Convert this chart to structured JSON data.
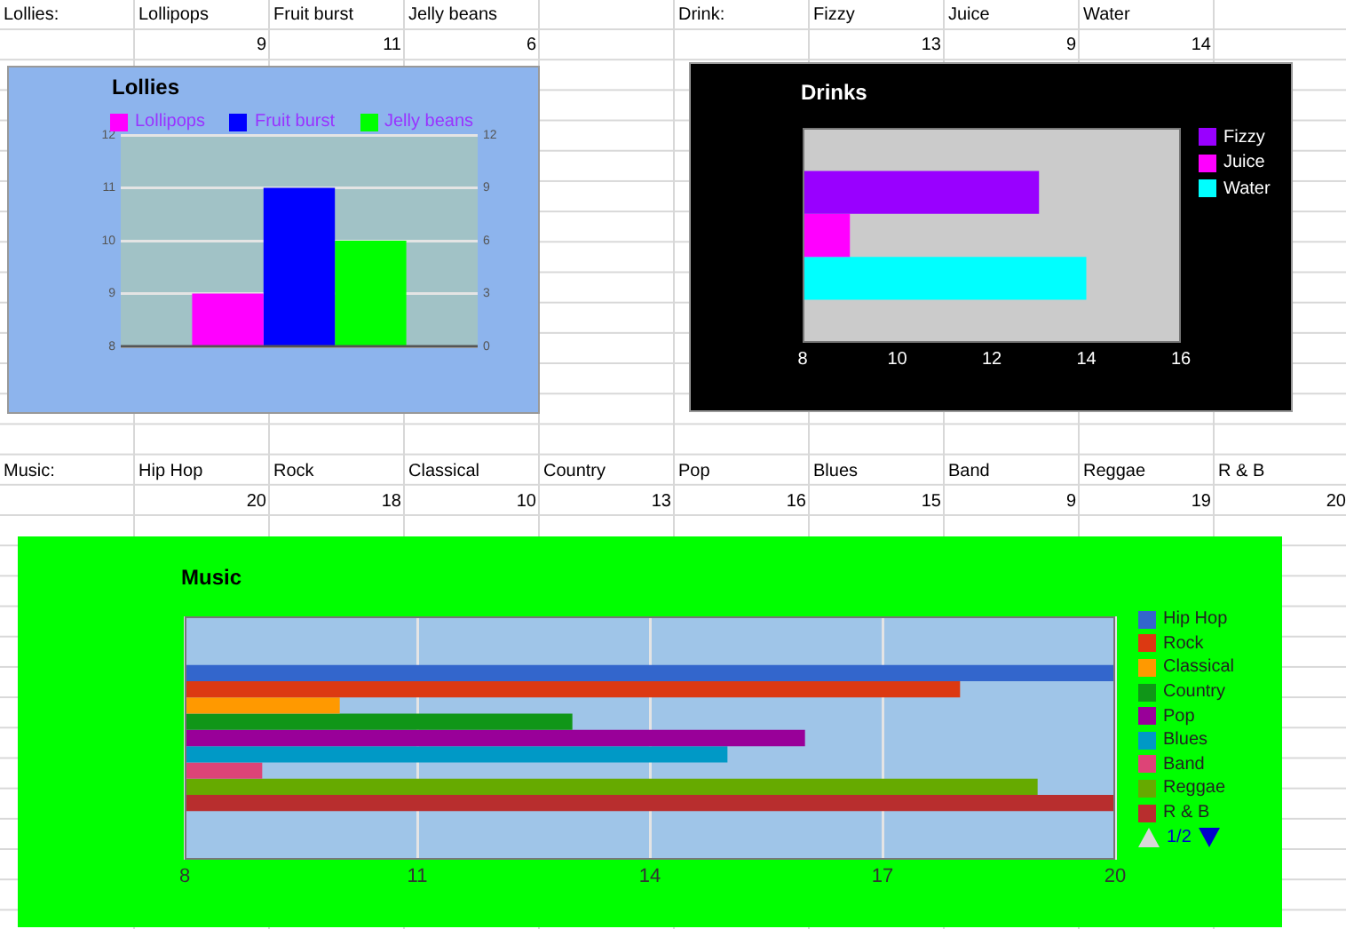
{
  "chart_data": [
    {
      "type": "bar",
      "title": "Lollies",
      "annotations": [
        "Lollies:",
        "9",
        "11",
        "6"
      ],
      "categories": [
        null
      ],
      "legend": "top",
      "grid": "y",
      "series": [
        {
          "name": "Lollipops",
          "color": "#ff00ff",
          "values": [
            9
          ]
        },
        {
          "name": "Fruit burst",
          "color": "#0000ff",
          "values": [
            11
          ]
        },
        {
          "name": "Jelly beans",
          "color": "#00ff00",
          "values": [
            6
          ],
          "axis": "y2"
        }
      ],
      "ylim": [
        8,
        12
      ],
      "yticks": [
        8,
        9,
        10,
        11,
        12
      ],
      "y2lim": [
        0,
        12
      ],
      "y2ticks": [
        0,
        3,
        6,
        9,
        12
      ]
    },
    {
      "type": "bar",
      "orientation": "horizontal",
      "title": "Drinks",
      "annotations": [
        "Drink:",
        "13",
        "9",
        "14"
      ],
      "categories": [
        null
      ],
      "legend": "right",
      "series": [
        {
          "name": "Fizzy",
          "color": "#9900ff",
          "values": [
            13
          ]
        },
        {
          "name": "Juice",
          "color": "#ff00ff",
          "values": [
            9
          ]
        },
        {
          "name": "Water",
          "color": "#00ffff",
          "values": [
            14
          ]
        }
      ],
      "xlim": [
        8,
        16
      ],
      "xticks": [
        8,
        10,
        12,
        14,
        16
      ]
    },
    {
      "type": "bar",
      "orientation": "horizontal",
      "title": "Music",
      "annotations": [
        "Music:",
        "20",
        "18",
        "10",
        "13",
        "16",
        "15",
        "9",
        "19",
        "20",
        "1/2"
      ],
      "categories": [
        null
      ],
      "legend": "right",
      "grid": "x",
      "series": [
        {
          "name": "Hip Hop",
          "color": "#3366cc",
          "values": [
            20
          ]
        },
        {
          "name": "Rock",
          "color": "#dc3912",
          "values": [
            18
          ]
        },
        {
          "name": "Classical",
          "color": "#ff9900",
          "values": [
            10
          ]
        },
        {
          "name": "Country",
          "color": "#109618",
          "values": [
            13
          ]
        },
        {
          "name": "Pop",
          "color": "#990099",
          "values": [
            16
          ]
        },
        {
          "name": "Blues",
          "color": "#0099c6",
          "values": [
            15
          ]
        },
        {
          "name": "Band",
          "color": "#dd4477",
          "values": [
            9
          ]
        },
        {
          "name": "Reggae",
          "color": "#66aa00",
          "values": [
            19
          ]
        },
        {
          "name": "R & B",
          "color": "#b82e2e",
          "values": [
            20
          ]
        }
      ],
      "xlim": [
        8,
        20
      ],
      "xticks": [
        8,
        11,
        14,
        17,
        20
      ]
    }
  ]
}
